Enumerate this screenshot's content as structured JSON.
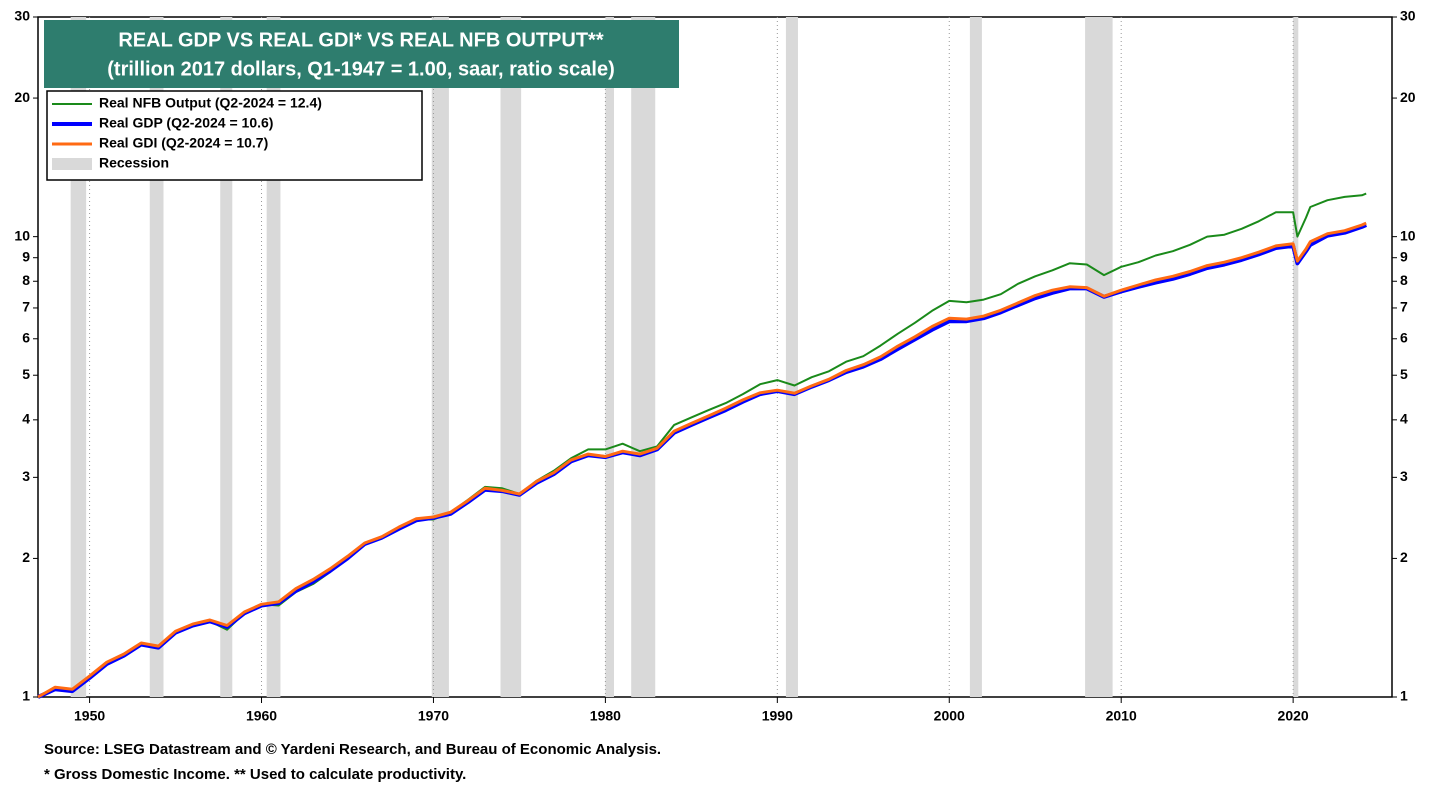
{
  "chart_data": {
    "type": "line",
    "title": "REAL GDP VS REAL GDI* VS REAL NFB OUTPUT**",
    "subtitle": "(trillion 2017 dollars, Q1-1947 = 1.00, saar, ratio scale)",
    "source": "Source: LSEG Datastream and © Yardeni Research, and Bureau of Economic Analysis.",
    "footnote": "* Gross Domestic Income. ** Used to calculate productivity.",
    "log_scale": true,
    "grid": true,
    "legend": "upper left",
    "xlim": [
      1947,
      2025.75
    ],
    "xticks": [
      1950,
      1960,
      1970,
      1980,
      1990,
      2000,
      2010,
      2020
    ],
    "ylim": [
      1,
      30
    ],
    "yticks": [
      1,
      2,
      3,
      4,
      5,
      6,
      7,
      8,
      9,
      10,
      20,
      30
    ],
    "recession_label": "Recession",
    "recession_color": "#d9d9d9",
    "recessions": [
      [
        1948.9,
        1949.8
      ],
      [
        1953.5,
        1954.3
      ],
      [
        1957.6,
        1958.3
      ],
      [
        1960.3,
        1961.1
      ],
      [
        1969.9,
        1970.9
      ],
      [
        1973.9,
        1975.1
      ],
      [
        1980.0,
        1980.5
      ],
      [
        1981.5,
        1982.9
      ],
      [
        1990.5,
        1991.2
      ],
      [
        2001.2,
        2001.9
      ],
      [
        2007.9,
        2009.5
      ],
      [
        2020.0,
        2020.3
      ]
    ],
    "x": [
      1947,
      1948,
      1949,
      1950,
      1951,
      1952,
      1953,
      1954,
      1955,
      1956,
      1957,
      1958,
      1959,
      1960,
      1961,
      1962,
      1963,
      1964,
      1965,
      1966,
      1967,
      1968,
      1969,
      1970,
      1971,
      1972,
      1973,
      1974,
      1975,
      1976,
      1977,
      1978,
      1979,
      1980,
      1981,
      1982,
      1983,
      1984,
      1985,
      1986,
      1987,
      1988,
      1989,
      1990,
      1991,
      1992,
      1993,
      1994,
      1995,
      1996,
      1997,
      1998,
      1999,
      2000,
      2001,
      2002,
      2003,
      2004,
      2005,
      2006,
      2007,
      2008,
      2009,
      2010,
      2011,
      2012,
      2013,
      2014,
      2015,
      2016,
      2017,
      2018,
      2019,
      2020,
      2020.25,
      2020.75,
      2021,
      2022,
      2023,
      2024,
      2024.25
    ],
    "series": [
      {
        "name": "Real NFB Output  (Q2-2024 = 12.4)",
        "color": "#1a8a1a",
        "width": 2,
        "values": [
          1.0,
          1.05,
          1.03,
          1.11,
          1.18,
          1.23,
          1.3,
          1.28,
          1.38,
          1.43,
          1.46,
          1.4,
          1.52,
          1.59,
          1.58,
          1.69,
          1.76,
          1.87,
          2.0,
          2.15,
          2.21,
          2.32,
          2.43,
          2.43,
          2.52,
          2.68,
          2.86,
          2.84,
          2.76,
          2.95,
          3.1,
          3.3,
          3.45,
          3.45,
          3.55,
          3.42,
          3.5,
          3.9,
          4.05,
          4.2,
          4.35,
          4.55,
          4.78,
          4.88,
          4.75,
          4.95,
          5.1,
          5.35,
          5.5,
          5.8,
          6.15,
          6.5,
          6.9,
          7.25,
          7.2,
          7.3,
          7.5,
          7.9,
          8.2,
          8.45,
          8.75,
          8.7,
          8.25,
          8.6,
          8.8,
          9.1,
          9.3,
          9.6,
          10.0,
          10.1,
          10.4,
          10.8,
          11.3,
          11.3,
          10.0,
          11.0,
          11.6,
          12.0,
          12.2,
          12.3,
          12.4
        ]
      },
      {
        "name": "Real GDP (Q2-2024 = 10.6)",
        "color": "#0000ff",
        "width": 4,
        "values": [
          1.0,
          1.04,
          1.03,
          1.1,
          1.18,
          1.23,
          1.3,
          1.28,
          1.38,
          1.43,
          1.46,
          1.42,
          1.52,
          1.58,
          1.6,
          1.7,
          1.78,
          1.88,
          2.0,
          2.15,
          2.22,
          2.32,
          2.42,
          2.45,
          2.5,
          2.65,
          2.82,
          2.8,
          2.75,
          2.92,
          3.05,
          3.25,
          3.35,
          3.32,
          3.4,
          3.35,
          3.45,
          3.75,
          3.9,
          4.05,
          4.2,
          4.38,
          4.55,
          4.62,
          4.55,
          4.72,
          4.88,
          5.08,
          5.22,
          5.42,
          5.7,
          5.98,
          6.28,
          6.55,
          6.55,
          6.65,
          6.85,
          7.1,
          7.35,
          7.55,
          7.72,
          7.72,
          7.4,
          7.6,
          7.78,
          7.95,
          8.1,
          8.3,
          8.55,
          8.7,
          8.9,
          9.15,
          9.45,
          9.55,
          8.75,
          9.3,
          9.6,
          10.05,
          10.2,
          10.5,
          10.6
        ]
      },
      {
        "name": "Real GDI (Q2-2024 = 10.7)",
        "color": "#ff6a13",
        "width": 3,
        "values": [
          1.0,
          1.05,
          1.04,
          1.11,
          1.19,
          1.24,
          1.31,
          1.29,
          1.39,
          1.44,
          1.47,
          1.43,
          1.53,
          1.59,
          1.61,
          1.72,
          1.8,
          1.9,
          2.02,
          2.16,
          2.23,
          2.34,
          2.44,
          2.46,
          2.52,
          2.67,
          2.84,
          2.81,
          2.76,
          2.94,
          3.07,
          3.27,
          3.37,
          3.33,
          3.42,
          3.37,
          3.47,
          3.78,
          3.93,
          4.08,
          4.24,
          4.42,
          4.58,
          4.64,
          4.57,
          4.74,
          4.9,
          5.12,
          5.27,
          5.48,
          5.78,
          6.06,
          6.38,
          6.65,
          6.62,
          6.72,
          6.92,
          7.18,
          7.45,
          7.65,
          7.78,
          7.75,
          7.42,
          7.65,
          7.85,
          8.05,
          8.2,
          8.4,
          8.65,
          8.8,
          9.0,
          9.25,
          9.55,
          9.65,
          8.85,
          9.4,
          9.75,
          10.15,
          10.3,
          10.6,
          10.7
        ]
      }
    ]
  }
}
